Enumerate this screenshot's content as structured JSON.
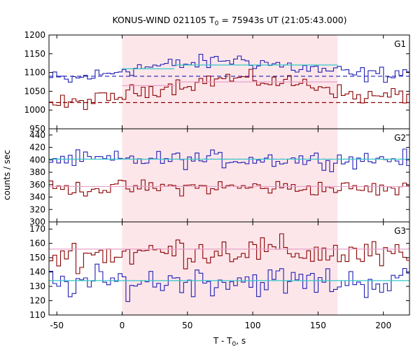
{
  "title": {
    "main": "KONUS-WIND 021105 T",
    "sub": "0",
    "rest": " = 75943s UT (21:05:43.000)"
  },
  "ylabel": "counts / sec",
  "xlabel": {
    "main": "T - T",
    "sub": "0",
    "rest": ", s"
  },
  "colors": {
    "blue": "#1f1fb4",
    "red": "#8b0000",
    "cyan": "#33c8c8",
    "pink": "#e8a0c8",
    "shade": "#fde6ea",
    "dashBlue": "#1f1fb4",
    "dashRed": "#8b0000"
  },
  "chart_data": {
    "type": "line",
    "step": 2.944,
    "xlim": [
      -56,
      220
    ],
    "xticks": [
      -50,
      0,
      50,
      100,
      150,
      200
    ],
    "shaded_interval": [
      0,
      165
    ],
    "panels": [
      {
        "label": "G1",
        "ylim": [
          950,
          1200
        ],
        "yticks": [
          950,
          1000,
          1050,
          1100,
          1150,
          1200
        ],
        "series": [
          {
            "color_key": "blue",
            "anchors": [
              [
                -56,
                1085
              ],
              [
                -40,
                1080
              ],
              [
                -25,
                1090
              ],
              [
                -10,
                1095
              ],
              [
                0,
                1110
              ],
              [
                20,
                1115
              ],
              [
                40,
                1120
              ],
              [
                60,
                1125
              ],
              [
                80,
                1135
              ],
              [
                100,
                1130
              ],
              [
                120,
                1120
              ],
              [
                140,
                1110
              ],
              [
                160,
                1105
              ],
              [
                175,
                1095
              ],
              [
                200,
                1095
              ],
              [
                220,
                1105
              ]
            ],
            "amp": 14
          },
          {
            "color_key": "red",
            "anchors": [
              [
                -56,
                1020
              ],
              [
                -40,
                1015
              ],
              [
                -25,
                1025
              ],
              [
                -10,
                1030
              ],
              [
                0,
                1040
              ],
              [
                20,
                1055
              ],
              [
                40,
                1065
              ],
              [
                60,
                1075
              ],
              [
                80,
                1085
              ],
              [
                100,
                1080
              ],
              [
                120,
                1075
              ],
              [
                140,
                1070
              ],
              [
                160,
                1060
              ],
              [
                170,
                1040
              ],
              [
                190,
                1035
              ],
              [
                220,
                1040
              ]
            ],
            "amp": 14
          }
        ],
        "bg_dashed": [
          {
            "color_key": "dashBlue",
            "value": 1090
          },
          {
            "color_key": "dashRed",
            "value": 1020
          }
        ],
        "fit_lines": [
          {
            "color_key": "cyan",
            "segments": [
              [
                0,
                40,
                1110
              ],
              [
                40,
                165,
                1120
              ]
            ]
          },
          {
            "color_key": "pink",
            "segments": [
              [
                0,
                40,
                1065
              ],
              [
                40,
                165,
                1075
              ]
            ]
          }
        ]
      },
      {
        "label": "G2",
        "ylim": [
          300,
          450
        ],
        "yticks": [
          300,
          320,
          340,
          360,
          380,
          400,
          420,
          440
        ],
        "series": [
          {
            "color_key": "blue",
            "anchors": [
              [
                -56,
                400
              ],
              [
                0,
                400
              ],
              [
                100,
                401
              ],
              [
                165,
                400
              ],
              [
                220,
                402
              ]
            ],
            "amp": 9
          },
          {
            "color_key": "red",
            "anchors": [
              [
                -56,
                353
              ],
              [
                0,
                355
              ],
              [
                100,
                356
              ],
              [
                165,
                354
              ],
              [
                220,
                352
              ]
            ],
            "amp": 8
          }
        ],
        "bg_dashed": [
          {
            "color_key": "dashBlue",
            "value": 401
          }
        ],
        "fit_lines": [
          {
            "color_key": "cyan",
            "segments": [
              [
                -56,
                220,
                401
              ]
            ]
          },
          {
            "color_key": "pink",
            "segments": [
              [
                -56,
                220,
                357
              ]
            ]
          }
        ]
      },
      {
        "label": "G3",
        "ylim": [
          110,
          175
        ],
        "yticks": [
          110,
          120,
          130,
          140,
          150,
          160,
          170
        ],
        "series": [
          {
            "color_key": "red",
            "anchors": [
              [
                -56,
                152
              ],
              [
                0,
                153
              ],
              [
                50,
                155
              ],
              [
                100,
                155
              ],
              [
                165,
                153
              ],
              [
                220,
                150
              ]
            ],
            "amp": 7
          },
          {
            "color_key": "blue",
            "anchors": [
              [
                -56,
                132
              ],
              [
                0,
                133
              ],
              [
                50,
                134
              ],
              [
                100,
                134
              ],
              [
                165,
                133
              ],
              [
                220,
                133
              ]
            ],
            "amp": 7
          }
        ],
        "bg_dashed": [],
        "fit_lines": [
          {
            "color_key": "cyan",
            "segments": [
              [
                -56,
                220,
                134
              ]
            ]
          },
          {
            "color_key": "pink",
            "segments": [
              [
                -56,
                220,
                156
              ]
            ]
          }
        ]
      }
    ]
  }
}
